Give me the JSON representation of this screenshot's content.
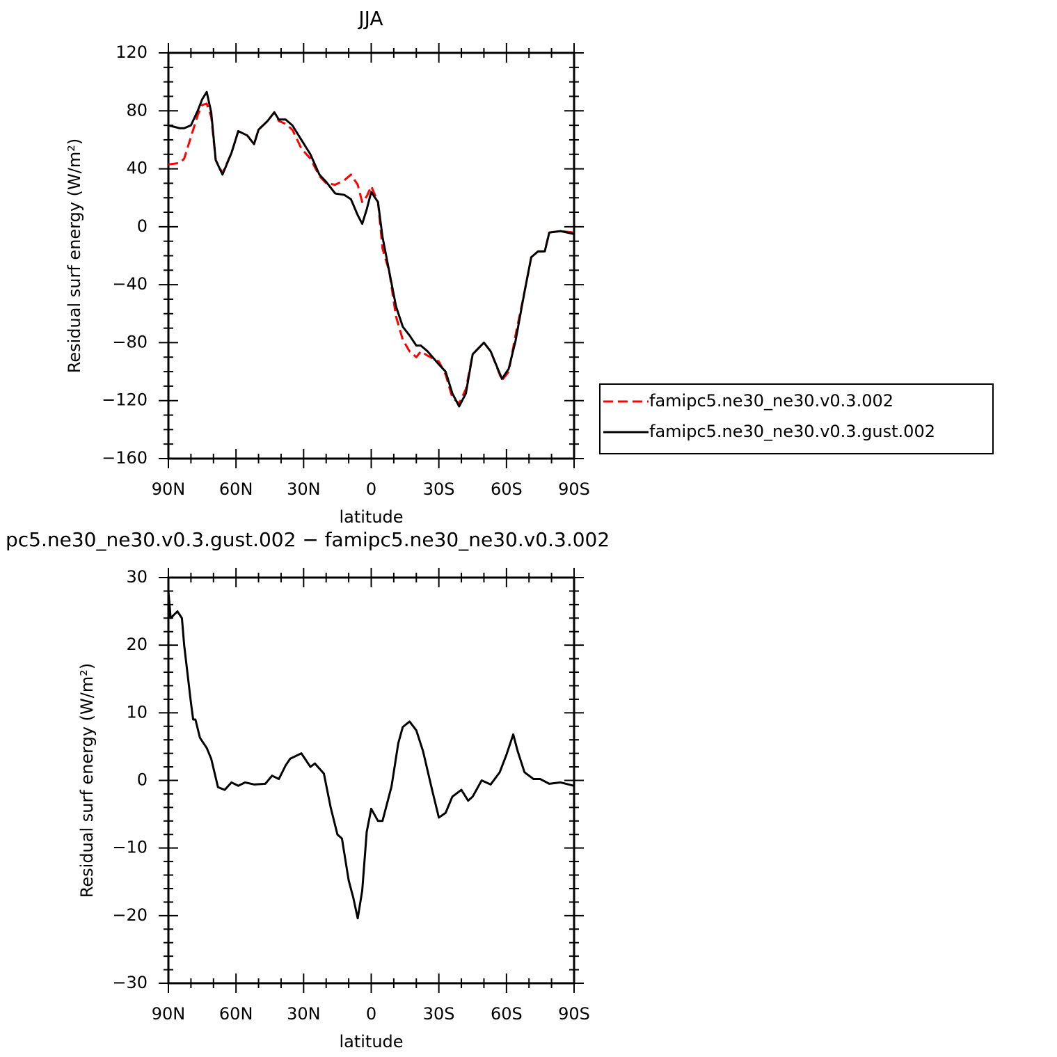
{
  "chart_data": [
    {
      "type": "line",
      "title": "JJA",
      "xlabel": "latitude",
      "ylabel": "Residual surf energy (W/m²)",
      "x": [
        90,
        85,
        83,
        80,
        77,
        75,
        73,
        71,
        69,
        66,
        62,
        59,
        55,
        52,
        50,
        46,
        43,
        41,
        38,
        35,
        31,
        27,
        23,
        20,
        16,
        12,
        9,
        6,
        4,
        2,
        0,
        -3,
        -5,
        -8,
        -11,
        -14,
        -17,
        -20,
        -22,
        -25,
        -30,
        -33,
        -36,
        -39,
        -42,
        -45,
        -50,
        -53,
        -58,
        -61,
        -64,
        -68,
        -71,
        -74,
        -77,
        -79,
        -84,
        -90
      ],
      "series": [
        {
          "name": "famipc5.ne30_ne30.v0.3.002",
          "color": "#ff0000",
          "line_style": "dashed",
          "values": [
            43,
            44,
            47,
            62,
            77,
            84,
            85,
            76,
            46,
            37,
            51,
            66,
            63,
            57,
            67,
            73,
            79,
            73,
            71,
            67,
            54,
            47,
            35,
            30,
            29,
            32,
            36,
            29,
            17,
            21,
            28,
            17,
            -15,
            -31,
            -62,
            -78,
            -86,
            -90,
            -86,
            -89,
            -93,
            -102,
            -118,
            -122,
            -112,
            -88,
            -80,
            -86,
            -106,
            -100,
            -75,
            -45,
            -21,
            -17,
            -17,
            -4,
            -3,
            -4
          ]
        },
        {
          "name": "famipc5.ne30_ne30.v0.3.gust.002",
          "color": "#000000",
          "line_style": "solid",
          "values": [
            70,
            68,
            68,
            70,
            80,
            88,
            93,
            79,
            46,
            36,
            51,
            66,
            63,
            57,
            67,
            73,
            79,
            74,
            74,
            70,
            60,
            50,
            36,
            31,
            23,
            22,
            19,
            8,
            2,
            12,
            24,
            17,
            -7,
            -31,
            -55,
            -69,
            -75,
            -82,
            -82,
            -86,
            -95,
            -100,
            -115,
            -124,
            -115,
            -88,
            -80,
            -86,
            -105,
            -98,
            -79,
            -45,
            -21,
            -17,
            -17,
            -4,
            -3,
            -5
          ]
        }
      ],
      "xlim": [
        90,
        -90
      ],
      "xticks": [
        {
          "value": 90,
          "label": "90N"
        },
        {
          "value": 60,
          "label": "60N"
        },
        {
          "value": 30,
          "label": "30N"
        },
        0,
        {
          "value": -30,
          "label": "30S"
        },
        {
          "value": -60,
          "label": "60S"
        },
        {
          "value": -90,
          "label": "90S"
        }
      ],
      "ylim": [
        -160,
        120
      ],
      "yticks": [
        {
          "value": -160,
          "label": "−160"
        },
        {
          "value": -120,
          "label": "−120"
        },
        {
          "value": -80,
          "label": "−80"
        },
        {
          "value": -40,
          "label": "−40"
        },
        0,
        40,
        80,
        120
      ],
      "legend": "right"
    },
    {
      "type": "line",
      "title": "pc5.ne30_ne30.v0.3.gust.002 − famipc5.ne30_ne30.v0.3.002",
      "xlabel": "latitude",
      "ylabel": "Residual surf energy (W/m²)",
      "x": [
        90,
        89,
        86,
        84,
        83,
        80,
        79,
        78,
        76,
        73,
        71,
        68,
        65,
        62,
        59,
        56,
        52,
        47,
        44,
        41,
        38,
        36,
        31,
        27,
        25,
        21,
        18,
        15,
        13,
        10,
        8,
        6,
        4,
        2,
        0,
        -3,
        -5,
        -9,
        -12,
        -14,
        -17,
        -20,
        -23,
        -27,
        -30,
        -33,
        -36,
        -40,
        -43,
        -45,
        -49,
        -53,
        -57,
        -60,
        -63,
        -65,
        -68,
        -72,
        -75,
        -79,
        -84,
        -90
      ],
      "series": [
        {
          "name": null,
          "color": "#000000",
          "line_style": "solid",
          "values": [
            28,
            24,
            25,
            24,
            20,
            11.5,
            9,
            9,
            6.3,
            4.8,
            3.2,
            -1,
            -1.4,
            -0.3,
            -0.8,
            -0.3,
            -0.6,
            -0.5,
            0.7,
            0.2,
            2.2,
            3.2,
            4,
            2,
            2.5,
            1,
            -4,
            -8,
            -8.6,
            -14.8,
            -17.3,
            -20.4,
            -16.3,
            -7.6,
            -4.2,
            -6,
            -6,
            -0.9,
            5.5,
            7.9,
            8.7,
            7.4,
            4.3,
            -1.4,
            -5.5,
            -4.8,
            -2.4,
            -1.4,
            -3,
            -2.4,
            0,
            -0.6,
            1.2,
            3.8,
            6.8,
            4.3,
            1.2,
            0.2,
            0.2,
            -0.5,
            -0.3,
            -0.8
          ]
        }
      ],
      "xlim": [
        90,
        -90
      ],
      "xticks": [
        {
          "value": 90,
          "label": "90N"
        },
        {
          "value": 60,
          "label": "60N"
        },
        {
          "value": 30,
          "label": "30N"
        },
        0,
        {
          "value": -30,
          "label": "30S"
        },
        {
          "value": -60,
          "label": "60S"
        },
        {
          "value": -90,
          "label": "90S"
        }
      ],
      "ylim": [
        -30,
        30
      ],
      "yticks": [
        {
          "value": -30,
          "label": "−30"
        },
        {
          "value": -20,
          "label": "−20"
        },
        {
          "value": -10,
          "label": "−10"
        },
        0,
        10,
        20,
        30
      ]
    }
  ]
}
